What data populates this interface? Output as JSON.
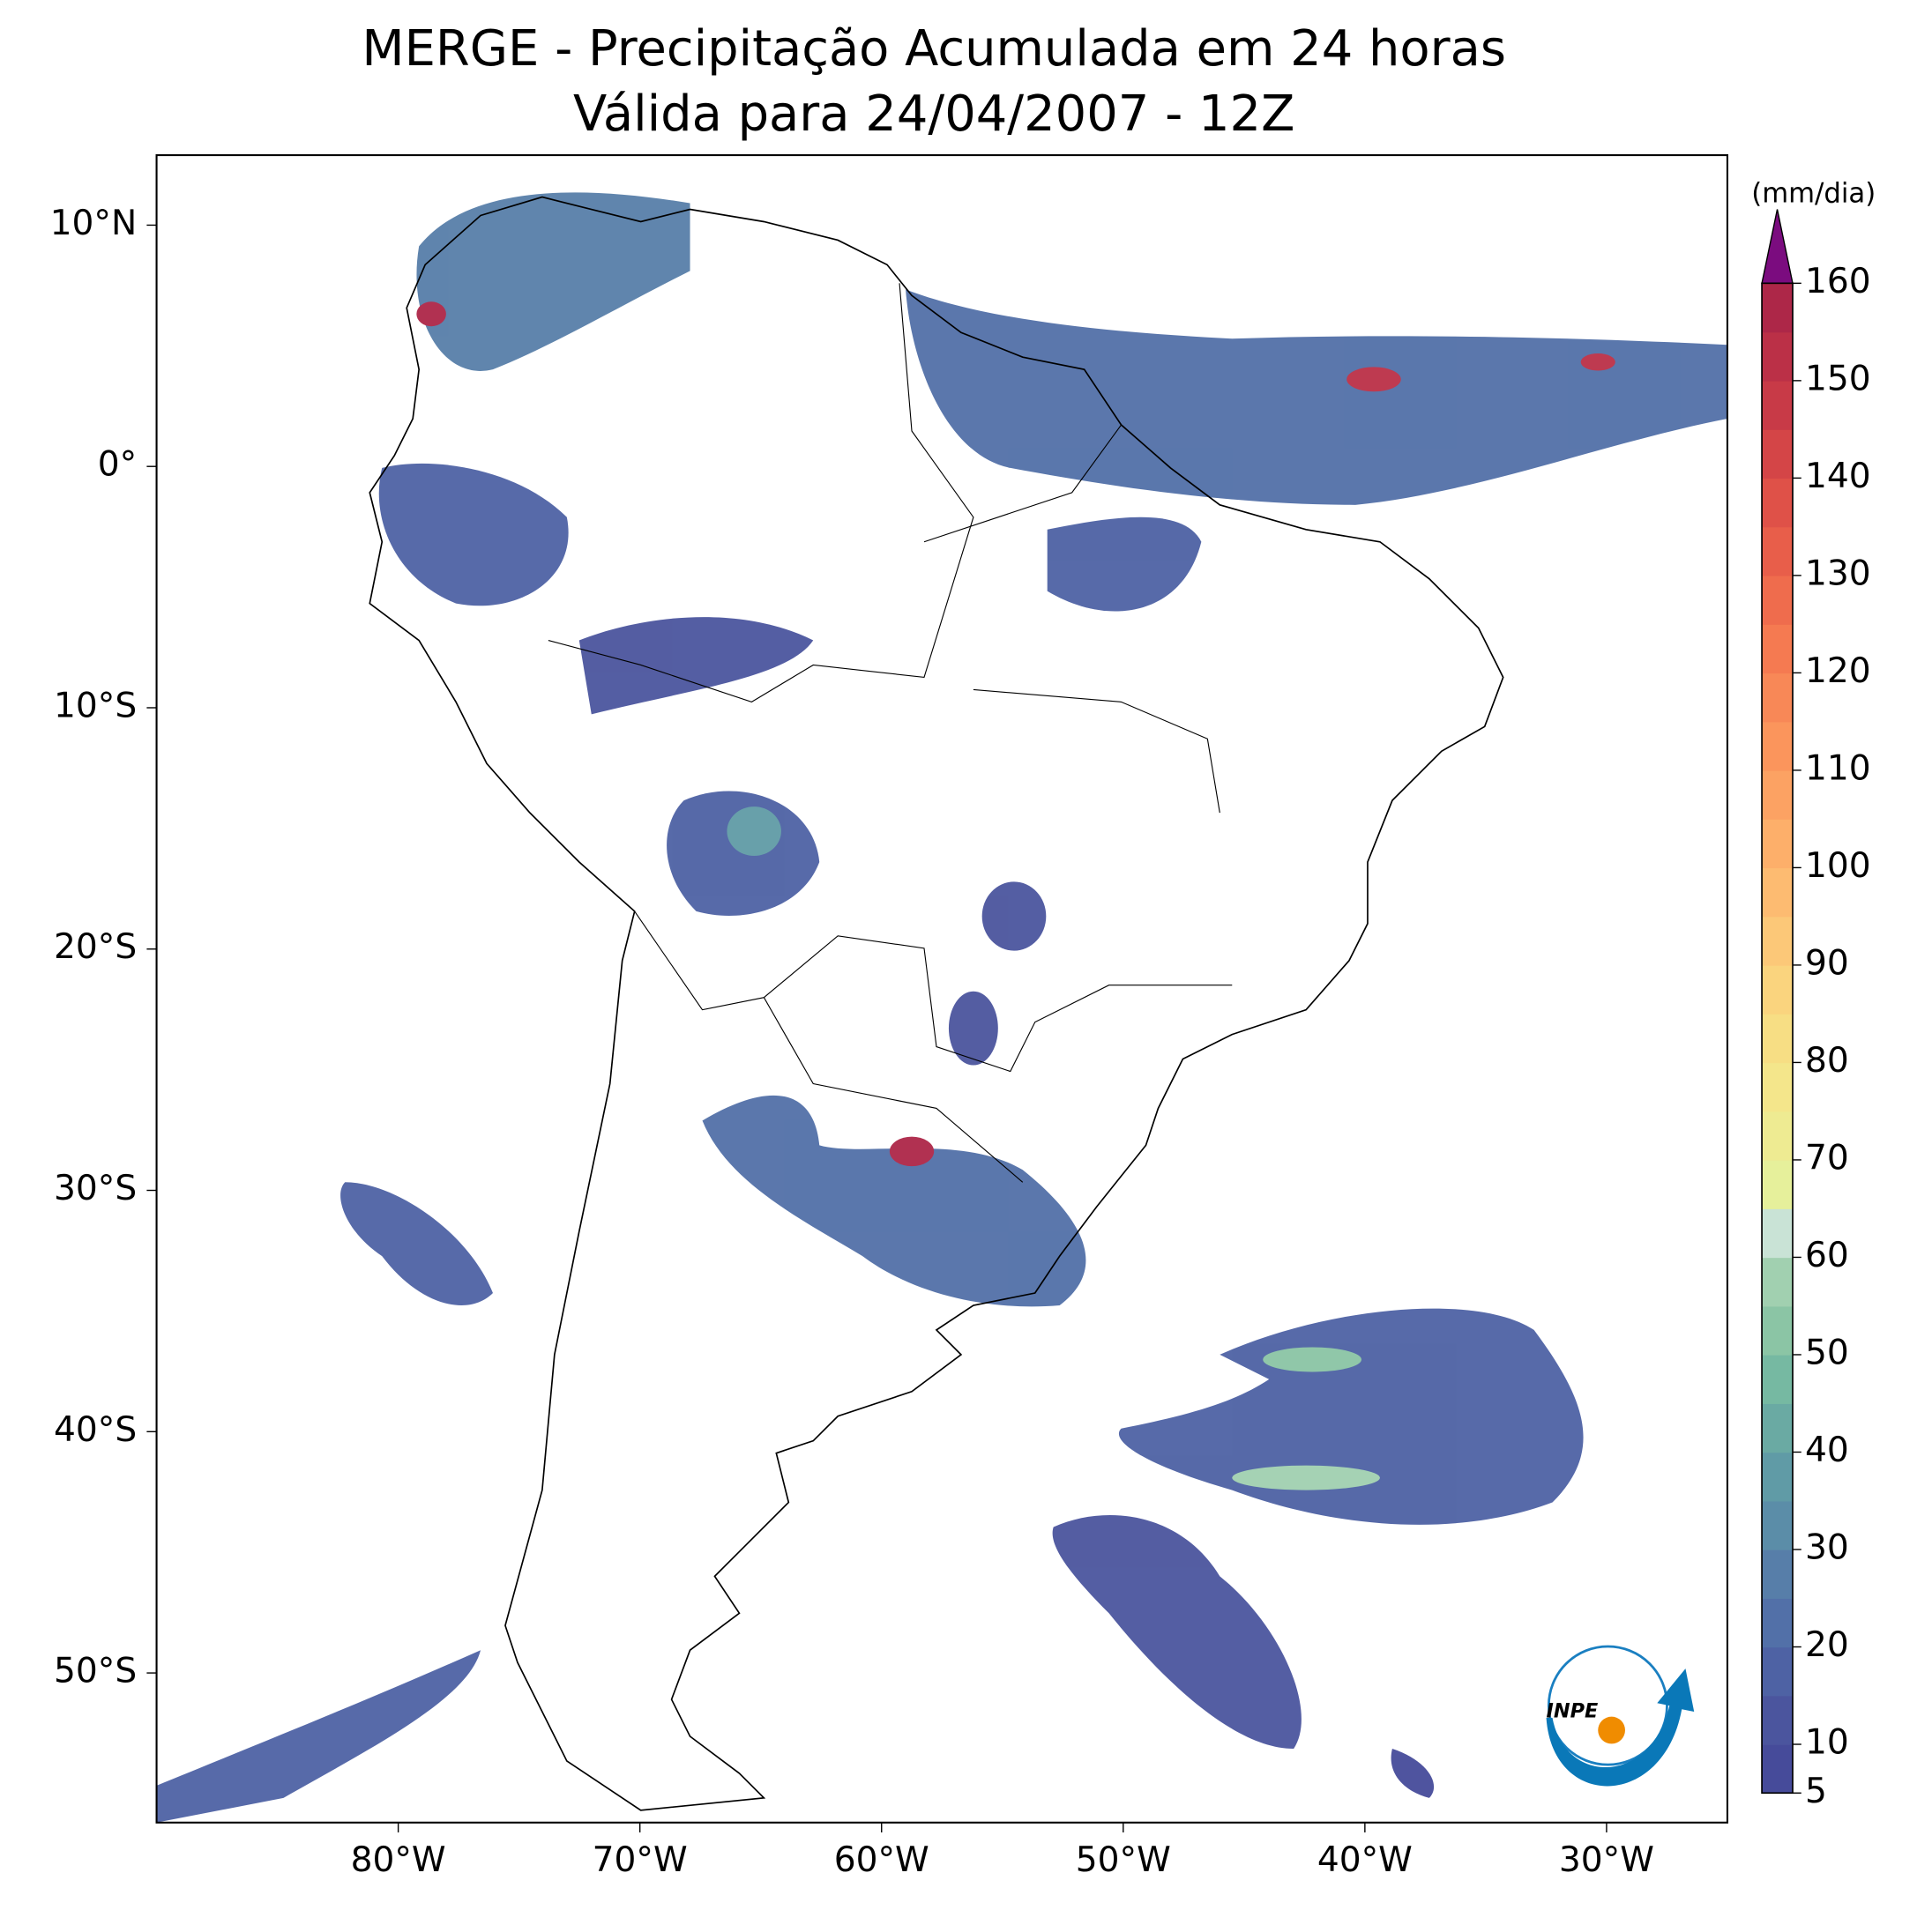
{
  "chart_data": {
    "type": "map",
    "title": "MERGE - Precipitação Acumulada em 24 horas",
    "subtitle": "Válida para 24/04/2007 - 12Z",
    "logo_text": "INPE",
    "xlim": [
      -90,
      -25
    ],
    "ylim": [
      -56.2,
      12.9
    ],
    "xticks": [
      {
        "value": -80,
        "label": "80°W"
      },
      {
        "value": -70,
        "label": "70°W"
      },
      {
        "value": -60,
        "label": "60°W"
      },
      {
        "value": -50,
        "label": "50°W"
      },
      {
        "value": -40,
        "label": "40°W"
      },
      {
        "value": -30,
        "label": "30°W"
      }
    ],
    "yticks": [
      {
        "value": 10,
        "label": "10°N"
      },
      {
        "value": 0,
        "label": "0°"
      },
      {
        "value": -10,
        "label": "10°S"
      },
      {
        "value": -20,
        "label": "20°S"
      },
      {
        "value": -30,
        "label": "30°S"
      },
      {
        "value": -40,
        "label": "40°S"
      },
      {
        "value": -50,
        "label": "50°S"
      }
    ],
    "colorbar": {
      "label": "(mm/dia)",
      "levels": [
        5,
        10,
        15,
        20,
        25,
        30,
        35,
        40,
        45,
        50,
        55,
        60,
        65,
        70,
        75,
        80,
        85,
        90,
        95,
        100,
        105,
        110,
        115,
        120,
        125,
        130,
        135,
        140,
        145,
        150,
        155,
        160
      ],
      "colors": [
        "#464b9a",
        "#4b559e",
        "#4e62a4",
        "#5270a8",
        "#577ea9",
        "#5b8da8",
        "#609ba6",
        "#6aaaa3",
        "#76b9a2",
        "#8bc5a5",
        "#a1d0b0",
        "#c9e3d6",
        "#e6f09b",
        "#eeeb92",
        "#f4e68b",
        "#f7de84",
        "#fad47e",
        "#fcc878",
        "#fdbb71",
        "#fdaf6a",
        "#fca263",
        "#fb955c",
        "#f88857",
        "#f57a51",
        "#ef6c4d",
        "#e85e4a",
        "#df5148",
        "#d44547",
        "#c83a47",
        "#bb3047",
        "#ad2748"
      ],
      "extend_color": "#7b0c7f",
      "ticks": [
        5,
        10,
        20,
        30,
        40,
        50,
        60,
        70,
        80,
        90,
        100,
        110,
        120,
        130,
        140,
        150,
        160
      ]
    }
  }
}
